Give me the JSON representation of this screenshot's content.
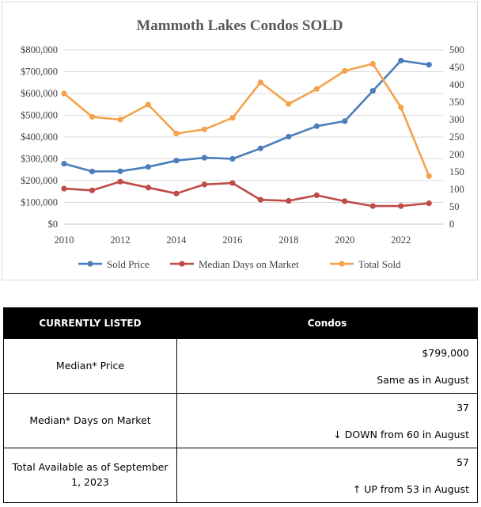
{
  "chart_data": {
    "type": "line",
    "title": "Mammoth Lakes Condos SOLD",
    "x": [
      2010,
      2011,
      2012,
      2013,
      2014,
      2015,
      2016,
      2017,
      2018,
      2019,
      2020,
      2021,
      2022,
      2023
    ],
    "x_ticks": [
      "2010",
      "2012",
      "2014",
      "2016",
      "2018",
      "2020",
      "2022"
    ],
    "y_left_ticks": [
      "$0",
      "$100,000",
      "$200,000",
      "$300,000",
      "$400,000",
      "$500,000",
      "$600,000",
      "$700,000",
      "$800,000"
    ],
    "y_right_ticks": [
      "0",
      "50",
      "100",
      "150",
      "200",
      "250",
      "300",
      "350",
      "400",
      "450",
      "500"
    ],
    "ylim_left": [
      0,
      800000
    ],
    "ylim_right": [
      0,
      500
    ],
    "xlim": [
      2010,
      2023.5
    ],
    "grid": true,
    "legend_position": "bottom",
    "series": [
      {
        "name": "Sold Price",
        "axis": "left",
        "color": "#4a7ebb",
        "values": [
          278000,
          242000,
          243000,
          263000,
          292000,
          305000,
          300000,
          348000,
          402000,
          450000,
          473000,
          612000,
          751000,
          732000
        ]
      },
      {
        "name": "Median Days on Market",
        "axis": "right",
        "color": "#be4b48",
        "values": [
          102,
          97,
          122,
          105,
          88,
          114,
          118,
          70,
          67,
          83,
          66,
          52,
          52,
          60
        ]
      },
      {
        "name": "Total Sold",
        "axis": "right",
        "color": "#f4a24c",
        "values": [
          375,
          308,
          300,
          343,
          260,
          272,
          305,
          407,
          345,
          388,
          440,
          460,
          335,
          138
        ]
      }
    ]
  },
  "table": {
    "headers": [
      "CURRENTLY LISTED",
      "Condos"
    ],
    "rows": [
      {
        "label": "Median* Price",
        "value": "$799,000",
        "note": "Same as in August"
      },
      {
        "label": "Median* Days on Market",
        "value": "37",
        "note": "↓ DOWN from 60 in August"
      },
      {
        "label": "Total Available as of September 1, 2023",
        "value": "57",
        "note": "↑ UP from 53 in August"
      }
    ]
  }
}
